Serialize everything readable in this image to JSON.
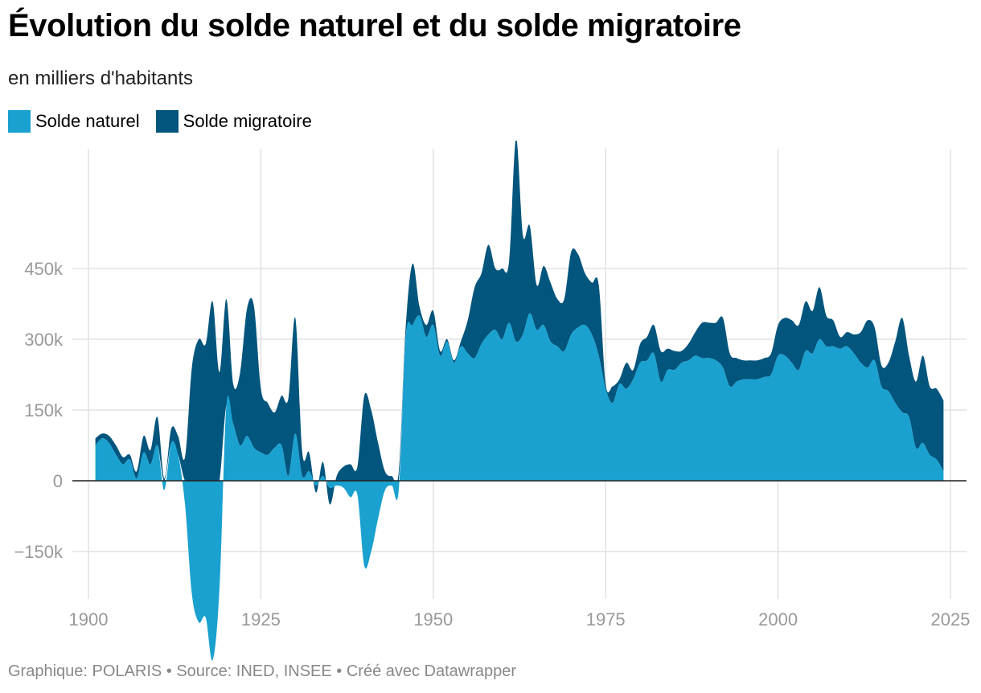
{
  "header": {
    "title": "Évolution du solde naturel et du solde migratoire",
    "subtitle": "en milliers d'habitants"
  },
  "legend": {
    "items": [
      {
        "label": "Solde naturel",
        "color": "#1aa1cf"
      },
      {
        "label": "Solde migratoire",
        "color": "#02557d"
      }
    ]
  },
  "footer": {
    "text": "Graphique: POLARIS • Source: INED, INSEE • Créé avec Datawrapper"
  },
  "chart_data": {
    "type": "area",
    "stacked": true,
    "title": "Évolution du solde naturel et du solde migratoire",
    "subtitle": "en milliers d'habitants",
    "xlabel": "",
    "ylabel": "",
    "xlim": [
      1900,
      2025
    ],
    "ylim": [
      -250000,
      600000
    ],
    "x_ticks": [
      1900,
      1925,
      1950,
      1975,
      2000,
      2025
    ],
    "x_tick_labels": [
      "1900",
      "1925",
      "1950",
      "1975",
      "2000",
      "2025"
    ],
    "y_ticks": [
      -150000,
      0,
      150000,
      300000,
      450000
    ],
    "y_tick_labels": [
      "−150k",
      "0",
      "150k",
      "300k",
      "450k"
    ],
    "legend_position": "top-left",
    "series": [
      {
        "name": "Solde naturel",
        "color": "#1aa1cf",
        "points": [
          [
            1901,
            75000
          ],
          [
            1902,
            90000
          ],
          [
            1903,
            80000
          ],
          [
            1904,
            55000
          ],
          [
            1905,
            35000
          ],
          [
            1906,
            45000
          ],
          [
            1907,
            5000
          ],
          [
            1908,
            60000
          ],
          [
            1909,
            35000
          ],
          [
            1910,
            75000
          ],
          [
            1911,
            -20000
          ],
          [
            1912,
            80000
          ],
          [
            1913,
            55000
          ],
          [
            1914,
            -50000
          ],
          [
            1915,
            -240000
          ],
          [
            1916,
            -300000
          ],
          [
            1917,
            -290000
          ],
          [
            1918,
            -380000
          ],
          [
            1919,
            -230000
          ],
          [
            1920,
            160000
          ],
          [
            1921,
            120000
          ],
          [
            1922,
            75000
          ],
          [
            1923,
            95000
          ],
          [
            1924,
            70000
          ],
          [
            1925,
            60000
          ],
          [
            1926,
            55000
          ],
          [
            1927,
            70000
          ],
          [
            1928,
            75000
          ],
          [
            1929,
            10000
          ],
          [
            1930,
            100000
          ],
          [
            1931,
            10000
          ],
          [
            1932,
            20000
          ],
          [
            1933,
            -10000
          ],
          [
            1934,
            10000
          ],
          [
            1935,
            -15000
          ],
          [
            1936,
            -10000
          ],
          [
            1937,
            -15000
          ],
          [
            1938,
            -35000
          ],
          [
            1939,
            -30000
          ],
          [
            1940,
            -180000
          ],
          [
            1941,
            -150000
          ],
          [
            1942,
            -80000
          ],
          [
            1943,
            -20000
          ],
          [
            1944,
            -10000
          ],
          [
            1945,
            -20000
          ],
          [
            1946,
            305000
          ],
          [
            1947,
            330000
          ],
          [
            1948,
            350000
          ],
          [
            1949,
            305000
          ],
          [
            1950,
            330000
          ],
          [
            1951,
            265000
          ],
          [
            1952,
            295000
          ],
          [
            1953,
            250000
          ],
          [
            1954,
            285000
          ],
          [
            1955,
            270000
          ],
          [
            1956,
            260000
          ],
          [
            1957,
            290000
          ],
          [
            1958,
            310000
          ],
          [
            1959,
            320000
          ],
          [
            1960,
            300000
          ],
          [
            1961,
            335000
          ],
          [
            1962,
            295000
          ],
          [
            1963,
            310000
          ],
          [
            1964,
            355000
          ],
          [
            1965,
            320000
          ],
          [
            1966,
            330000
          ],
          [
            1967,
            295000
          ],
          [
            1968,
            285000
          ],
          [
            1969,
            275000
          ],
          [
            1970,
            310000
          ],
          [
            1971,
            325000
          ],
          [
            1972,
            330000
          ],
          [
            1973,
            310000
          ],
          [
            1974,
            265000
          ],
          [
            1975,
            195000
          ],
          [
            1976,
            165000
          ],
          [
            1977,
            205000
          ],
          [
            1978,
            195000
          ],
          [
            1979,
            215000
          ],
          [
            1980,
            250000
          ],
          [
            1981,
            255000
          ],
          [
            1982,
            270000
          ],
          [
            1983,
            210000
          ],
          [
            1984,
            235000
          ],
          [
            1985,
            235000
          ],
          [
            1986,
            250000
          ],
          [
            1987,
            255000
          ],
          [
            1988,
            265000
          ],
          [
            1989,
            260000
          ],
          [
            1990,
            260000
          ],
          [
            1991,
            255000
          ],
          [
            1992,
            240000
          ],
          [
            1993,
            200000
          ],
          [
            1994,
            210000
          ],
          [
            1995,
            215000
          ],
          [
            1996,
            215000
          ],
          [
            1997,
            215000
          ],
          [
            1998,
            220000
          ],
          [
            1999,
            225000
          ],
          [
            2000,
            265000
          ],
          [
            2001,
            265000
          ],
          [
            2002,
            250000
          ],
          [
            2003,
            235000
          ],
          [
            2004,
            275000
          ],
          [
            2005,
            270000
          ],
          [
            2006,
            300000
          ],
          [
            2007,
            285000
          ],
          [
            2008,
            285000
          ],
          [
            2009,
            280000
          ],
          [
            2010,
            285000
          ],
          [
            2011,
            270000
          ],
          [
            2012,
            250000
          ],
          [
            2013,
            240000
          ],
          [
            2014,
            255000
          ],
          [
            2015,
            200000
          ],
          [
            2016,
            190000
          ],
          [
            2017,
            165000
          ],
          [
            2018,
            145000
          ],
          [
            2019,
            135000
          ],
          [
            2020,
            70000
          ],
          [
            2021,
            80000
          ],
          [
            2022,
            55000
          ],
          [
            2023,
            45000
          ],
          [
            2024,
            20000
          ]
        ]
      },
      {
        "name": "Solde migratoire",
        "color": "#02557d",
        "points": [
          [
            1901,
            15000
          ],
          [
            1902,
            10000
          ],
          [
            1903,
            15000
          ],
          [
            1904,
            20000
          ],
          [
            1905,
            15000
          ],
          [
            1906,
            10000
          ],
          [
            1907,
            15000
          ],
          [
            1908,
            35000
          ],
          [
            1909,
            30000
          ],
          [
            1910,
            60000
          ],
          [
            1911,
            5000
          ],
          [
            1912,
            30000
          ],
          [
            1913,
            40000
          ],
          [
            1914,
            50000
          ],
          [
            1915,
            240000
          ],
          [
            1916,
            300000
          ],
          [
            1917,
            290000
          ],
          [
            1918,
            380000
          ],
          [
            1919,
            230000
          ],
          [
            1920,
            225000
          ],
          [
            1921,
            85000
          ],
          [
            1922,
            155000
          ],
          [
            1923,
            270000
          ],
          [
            1924,
            300000
          ],
          [
            1925,
            135000
          ],
          [
            1926,
            110000
          ],
          [
            1927,
            75000
          ],
          [
            1928,
            105000
          ],
          [
            1929,
            165000
          ],
          [
            1930,
            245000
          ],
          [
            1931,
            50000
          ],
          [
            1932,
            40000
          ],
          [
            1933,
            -15000
          ],
          [
            1934,
            30000
          ],
          [
            1935,
            -35000
          ],
          [
            1936,
            10000
          ],
          [
            1937,
            30000
          ],
          [
            1938,
            35000
          ],
          [
            1939,
            30000
          ],
          [
            1940,
            180000
          ],
          [
            1941,
            150000
          ],
          [
            1942,
            80000
          ],
          [
            1943,
            20000
          ],
          [
            1944,
            10000
          ],
          [
            1945,
            20000
          ],
          [
            1946,
            20000
          ],
          [
            1947,
            130000
          ],
          [
            1948,
            20000
          ],
          [
            1949,
            25000
          ],
          [
            1950,
            30000
          ],
          [
            1951,
            10000
          ],
          [
            1952,
            5000
          ],
          [
            1953,
            5000
          ],
          [
            1954,
            10000
          ],
          [
            1955,
            70000
          ],
          [
            1956,
            150000
          ],
          [
            1957,
            150000
          ],
          [
            1958,
            190000
          ],
          [
            1959,
            130000
          ],
          [
            1960,
            150000
          ],
          [
            1961,
            130000
          ],
          [
            1962,
            430000
          ],
          [
            1963,
            210000
          ],
          [
            1964,
            185000
          ],
          [
            1965,
            95000
          ],
          [
            1966,
            125000
          ],
          [
            1967,
            125000
          ],
          [
            1968,
            100000
          ],
          [
            1969,
            110000
          ],
          [
            1970,
            175000
          ],
          [
            1971,
            155000
          ],
          [
            1972,
            110000
          ],
          [
            1973,
            110000
          ],
          [
            1974,
            150000
          ],
          [
            1975,
            10000
          ],
          [
            1976,
            35000
          ],
          [
            1977,
            10000
          ],
          [
            1978,
            55000
          ],
          [
            1979,
            20000
          ],
          [
            1980,
            40000
          ],
          [
            1981,
            50000
          ],
          [
            1982,
            60000
          ],
          [
            1983,
            65000
          ],
          [
            1984,
            45000
          ],
          [
            1985,
            40000
          ],
          [
            1986,
            25000
          ],
          [
            1987,
            35000
          ],
          [
            1988,
            50000
          ],
          [
            1989,
            75000
          ],
          [
            1990,
            75000
          ],
          [
            1991,
            80000
          ],
          [
            1992,
            105000
          ],
          [
            1993,
            70000
          ],
          [
            1994,
            50000
          ],
          [
            1995,
            40000
          ],
          [
            1996,
            40000
          ],
          [
            1997,
            40000
          ],
          [
            1998,
            40000
          ],
          [
            1999,
            45000
          ],
          [
            2000,
            65000
          ],
          [
            2001,
            80000
          ],
          [
            2002,
            90000
          ],
          [
            2003,
            95000
          ],
          [
            2004,
            105000
          ],
          [
            2005,
            90000
          ],
          [
            2006,
            110000
          ],
          [
            2007,
            65000
          ],
          [
            2008,
            55000
          ],
          [
            2009,
            25000
          ],
          [
            2010,
            30000
          ],
          [
            2011,
            40000
          ],
          [
            2012,
            65000
          ],
          [
            2013,
            100000
          ],
          [
            2014,
            70000
          ],
          [
            2015,
            45000
          ],
          [
            2016,
            60000
          ],
          [
            2017,
            130000
          ],
          [
            2018,
            200000
          ],
          [
            2019,
            130000
          ],
          [
            2020,
            140000
          ],
          [
            2021,
            185000
          ],
          [
            2022,
            145000
          ],
          [
            2023,
            150000
          ],
          [
            2024,
            150000
          ]
        ]
      }
    ]
  }
}
